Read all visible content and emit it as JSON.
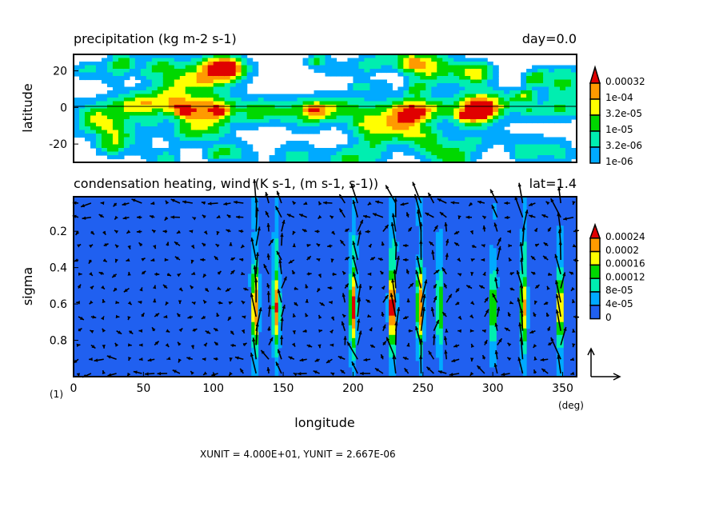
{
  "chart_data": [
    {
      "type": "heatmap",
      "title": "precipitation (kg m-2 s-1)",
      "right_title": "day=0.0",
      "xlabel": "",
      "ylabel": "latitude",
      "xlim": [
        0,
        360
      ],
      "ylim": [
        -30,
        29
      ],
      "yticks": [
        "20",
        "0",
        "-20"
      ],
      "ytick_values": [
        20,
        0,
        -20
      ],
      "zero_line": 0,
      "colorbar": {
        "labels": [
          "0.00032",
          "1e-04",
          "3.2e-05",
          "1e-05",
          "3.2e-06",
          "1e-06"
        ],
        "colors": [
          "#e00000",
          "#ff9a00",
          "#ffff00",
          "#00d800",
          "#00eeb0",
          "#00aaff"
        ]
      }
    },
    {
      "type": "heatmap",
      "title": "condensation heating, wind (K s-1, (m s-1, s-1))",
      "right_title": "lat=1.4",
      "xlabel": "longitude",
      "ylabel": "sigma",
      "xlim": [
        0,
        360
      ],
      "ylim": [
        1.0,
        0.01
      ],
      "xticks": [
        "0",
        "50",
        "100",
        "150",
        "200",
        "250",
        "300",
        "350"
      ],
      "xtick_values": [
        0,
        50,
        100,
        150,
        200,
        250,
        300,
        350
      ],
      "x_unit": "(deg)",
      "frame_label": "(1)",
      "yticks": [
        "0.2",
        "0.4",
        "0.6",
        "0.8"
      ],
      "ytick_values": [
        0.2,
        0.4,
        0.6,
        0.8
      ],
      "colorbar": {
        "labels": [
          "0.00024",
          "0.0002",
          "0.00016",
          "0.00012",
          "8e-05",
          "4e-05",
          "0"
        ],
        "colors": [
          "#e00000",
          "#ff9a00",
          "#ffff00",
          "#00d800",
          "#00eeb0",
          "#00aaff",
          "#2060f0"
        ]
      },
      "heating_plume_longitudes": [
        130,
        145,
        200,
        228,
        248,
        262,
        300,
        322,
        348
      ],
      "vector_units": "XUNIT = 4.000E+01, YUNIT = 2.667E-06"
    }
  ]
}
